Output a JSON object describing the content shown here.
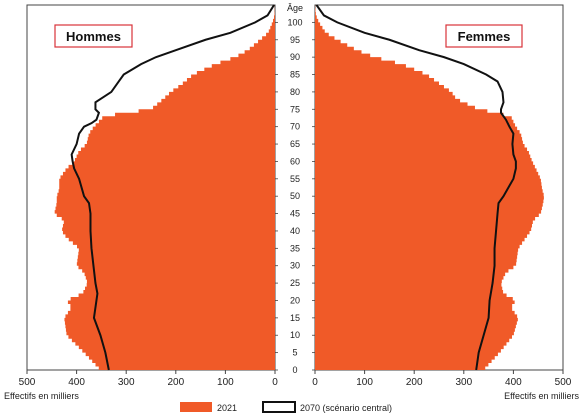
{
  "chart_data": {
    "type": "population-pyramid",
    "age_axis_label": "Âge",
    "x_axis_label": "Effectifs en milliers",
    "left_panel_title": "Hommes",
    "right_panel_title": "Femmes",
    "x_ticks": [
      500,
      400,
      300,
      200,
      100,
      0
    ],
    "xlim": [
      0,
      500
    ],
    "age_ticks": [
      0,
      5,
      10,
      15,
      20,
      25,
      30,
      35,
      40,
      45,
      50,
      55,
      60,
      65,
      70,
      75,
      80,
      85,
      90,
      95,
      100
    ],
    "age_range": [
      0,
      105
    ],
    "colors": {
      "bars_2021": "#f05a28",
      "line_2070": "#111111"
    },
    "legend": {
      "series_2021": "2021",
      "series_2070": "2070 (scénario central)"
    },
    "series": [
      {
        "name": "2021",
        "kind": "bars",
        "hommes": [
          [
            0,
            352
          ],
          [
            5,
            385
          ],
          [
            10,
            420
          ],
          [
            15,
            425
          ],
          [
            18,
            410
          ],
          [
            20,
            420
          ],
          [
            22,
            388
          ],
          [
            25,
            378
          ],
          [
            28,
            385
          ],
          [
            30,
            400
          ],
          [
            35,
            395
          ],
          [
            38,
            420
          ],
          [
            40,
            430
          ],
          [
            43,
            425
          ],
          [
            45,
            445
          ],
          [
            48,
            440
          ],
          [
            50,
            440
          ],
          [
            52,
            435
          ],
          [
            55,
            435
          ],
          [
            58,
            420
          ],
          [
            60,
            405
          ],
          [
            63,
            395
          ],
          [
            65,
            380
          ],
          [
            68,
            375
          ],
          [
            70,
            365
          ],
          [
            73,
            345
          ],
          [
            74,
            300
          ],
          [
            75,
            250
          ],
          [
            78,
            225
          ],
          [
            80,
            210
          ],
          [
            82,
            190
          ],
          [
            85,
            165
          ],
          [
            88,
            120
          ],
          [
            90,
            80
          ],
          [
            92,
            55
          ],
          [
            95,
            30
          ],
          [
            97,
            14
          ],
          [
            100,
            5
          ],
          [
            102,
            1
          ],
          [
            105,
            0
          ]
        ],
        "femmes": [
          [
            0,
            340
          ],
          [
            5,
            372
          ],
          [
            10,
            400
          ],
          [
            15,
            410
          ],
          [
            18,
            395
          ],
          [
            20,
            405
          ],
          [
            22,
            380
          ],
          [
            25,
            375
          ],
          [
            28,
            385
          ],
          [
            30,
            405
          ],
          [
            35,
            410
          ],
          [
            38,
            425
          ],
          [
            40,
            435
          ],
          [
            43,
            440
          ],
          [
            45,
            455
          ],
          [
            48,
            460
          ],
          [
            50,
            462
          ],
          [
            52,
            458
          ],
          [
            55,
            455
          ],
          [
            58,
            445
          ],
          [
            60,
            438
          ],
          [
            63,
            430
          ],
          [
            65,
            420
          ],
          [
            68,
            415
          ],
          [
            70,
            405
          ],
          [
            73,
            395
          ],
          [
            74,
            365
          ],
          [
            75,
            330
          ],
          [
            78,
            285
          ],
          [
            80,
            275
          ],
          [
            82,
            255
          ],
          [
            85,
            225
          ],
          [
            88,
            175
          ],
          [
            90,
            120
          ],
          [
            92,
            85
          ],
          [
            95,
            45
          ],
          [
            97,
            22
          ],
          [
            100,
            8
          ],
          [
            102,
            2
          ],
          [
            105,
            0
          ]
        ]
      },
      {
        "name": "2070 (scénario central)",
        "kind": "line",
        "hommes": [
          [
            0,
            335
          ],
          [
            5,
            342
          ],
          [
            10,
            352
          ],
          [
            15,
            365
          ],
          [
            20,
            360
          ],
          [
            22,
            358
          ],
          [
            25,
            362
          ],
          [
            30,
            366
          ],
          [
            35,
            370
          ],
          [
            40,
            372
          ],
          [
            45,
            372
          ],
          [
            48,
            375
          ],
          [
            50,
            385
          ],
          [
            55,
            395
          ],
          [
            58,
            405
          ],
          [
            60,
            408
          ],
          [
            62,
            410
          ],
          [
            65,
            400
          ],
          [
            68,
            395
          ],
          [
            70,
            385
          ],
          [
            71,
            370
          ],
          [
            72,
            360
          ],
          [
            74,
            355
          ],
          [
            75,
            362
          ],
          [
            77,
            362
          ],
          [
            80,
            330
          ],
          [
            83,
            315
          ],
          [
            85,
            305
          ],
          [
            88,
            270
          ],
          [
            90,
            240
          ],
          [
            92,
            200
          ],
          [
            95,
            140
          ],
          [
            97,
            90
          ],
          [
            100,
            40
          ],
          [
            102,
            15
          ],
          [
            105,
            2
          ]
        ],
        "femmes": [
          [
            0,
            325
          ],
          [
            5,
            330
          ],
          [
            10,
            340
          ],
          [
            15,
            350
          ],
          [
            20,
            352
          ],
          [
            25,
            358
          ],
          [
            30,
            362
          ],
          [
            35,
            362
          ],
          [
            40,
            365
          ],
          [
            45,
            368
          ],
          [
            48,
            370
          ],
          [
            50,
            380
          ],
          [
            53,
            392
          ],
          [
            55,
            400
          ],
          [
            58,
            405
          ],
          [
            60,
            405
          ],
          [
            62,
            400
          ],
          [
            65,
            398
          ],
          [
            68,
            400
          ],
          [
            70,
            392
          ],
          [
            72,
            385
          ],
          [
            74,
            375
          ],
          [
            75,
            375
          ],
          [
            77,
            380
          ],
          [
            80,
            378
          ],
          [
            83,
            368
          ],
          [
            85,
            345
          ],
          [
            88,
            300
          ],
          [
            90,
            260
          ],
          [
            92,
            210
          ],
          [
            95,
            150
          ],
          [
            97,
            100
          ],
          [
            100,
            45
          ],
          [
            102,
            18
          ],
          [
            105,
            3
          ]
        ]
      }
    ]
  }
}
